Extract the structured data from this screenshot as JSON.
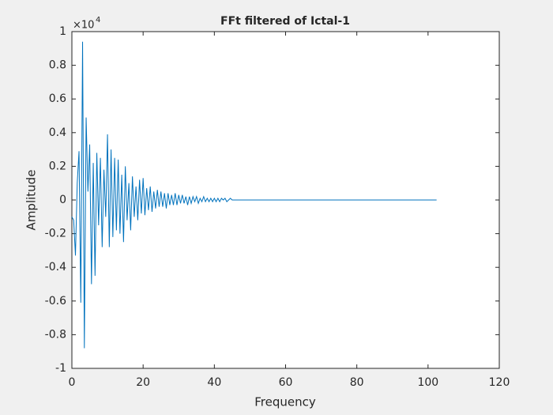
{
  "chart_data": {
    "type": "line",
    "title": "FFt filtered of Ictal-1",
    "x_label": "Frequency",
    "y_label": "Amplitude",
    "y_multiplier": {
      "base": "×10",
      "exponent": "4"
    },
    "color": "#0072bd",
    "x": [
      0,
      0.5,
      1,
      1.5,
      2,
      2.5,
      3,
      3.5,
      4,
      4.5,
      5,
      5.5,
      6,
      6.5,
      7,
      7.5,
      8,
      8.5,
      9,
      9.5,
      10,
      10.5,
      11,
      11.5,
      12,
      12.5,
      13,
      13.5,
      14,
      14.5,
      15,
      15.5,
      16,
      16.5,
      17,
      17.5,
      18,
      18.5,
      19,
      19.5,
      20,
      20.5,
      21,
      21.5,
      22,
      22.5,
      23,
      23.5,
      24,
      24.5,
      25,
      25.5,
      26,
      26.5,
      27,
      27.5,
      28,
      28.5,
      29,
      29.5,
      30,
      30.5,
      31,
      31.5,
      32,
      32.5,
      33,
      33.5,
      34,
      34.5,
      35,
      35.5,
      36,
      36.5,
      37,
      37.5,
      38,
      38.5,
      39,
      39.5,
      40,
      40.5,
      41,
      41.5,
      42,
      42.5,
      43,
      43.5,
      44,
      44.5,
      45,
      45.5,
      46,
      46.5,
      47,
      47.5,
      48,
      48.5,
      49,
      49.5,
      50,
      102.4
    ],
    "values": [
      -0.1,
      -0.12,
      -0.33,
      0.1,
      0.29,
      -0.61,
      0.94,
      -0.88,
      0.49,
      0.05,
      0.33,
      -0.5,
      0.22,
      -0.45,
      0.28,
      -0.15,
      0.25,
      -0.28,
      0.18,
      -0.1,
      0.39,
      -0.28,
      0.3,
      -0.22,
      0.25,
      -0.18,
      0.24,
      -0.2,
      0.15,
      -0.25,
      0.2,
      -0.12,
      0.1,
      -0.18,
      0.14,
      -0.1,
      0.08,
      -0.12,
      0.12,
      -0.08,
      0.13,
      -0.09,
      0.07,
      -0.06,
      0.08,
      -0.07,
      0.05,
      -0.05,
      0.06,
      -0.04,
      0.05,
      -0.04,
      0.04,
      -0.05,
      0.04,
      -0.03,
      0.03,
      -0.03,
      0.04,
      -0.03,
      0.03,
      -0.02,
      0.03,
      -0.02,
      0.02,
      -0.03,
      0.02,
      -0.02,
      0.02,
      -0.01,
      0.02,
      -0.02,
      0.01,
      -0.01,
      0.02,
      -0.01,
      0.01,
      -0.01,
      0.01,
      -0.01,
      0.01,
      -0.01,
      0.01,
      -0.01,
      0.01,
      0,
      0.01,
      -0.01,
      0,
      0.01,
      0,
      0,
      0,
      0,
      0,
      0,
      0,
      0,
      0,
      0,
      0,
      0
    ],
    "xlim": [
      0,
      120
    ],
    "xticks": [
      0,
      20,
      40,
      60,
      80,
      100,
      120
    ],
    "ylim": [
      -1,
      1
    ],
    "yticks": [
      -1,
      -0.8,
      -0.6,
      -0.4,
      -0.2,
      0,
      0.2,
      0.4,
      0.6,
      0.8,
      1
    ],
    "grid": false
  }
}
